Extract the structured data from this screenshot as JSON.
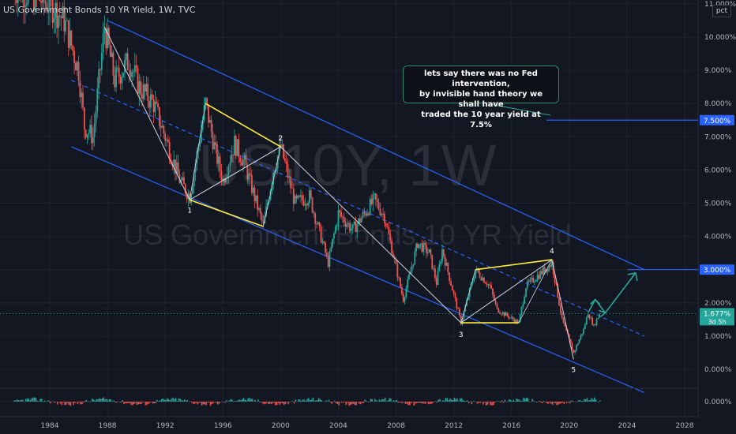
{
  "header": {
    "title": "US Government Bonds 10 YR Yield, 1W, TVC"
  },
  "watermark": {
    "symbol": "US10Y, 1W",
    "description": "US Government Bonds 10 YR Yield"
  },
  "scale_button": "pct",
  "annotation_note": "lets say there was no Fed intervention,\nby invisible hand theory we shall have\ntraded the 10 year yield at 7.5%",
  "price_tags": [
    {
      "label": "7.500%",
      "value": 7.5,
      "color": "#2962ff"
    },
    {
      "label": "3.000%",
      "value": 3.0,
      "color": "#2962ff"
    },
    {
      "label": "1.677%",
      "sub": "3d 5h",
      "value": 1.677,
      "color": "#26a69a"
    }
  ],
  "wave_labels": [
    "1",
    "2",
    "3",
    "4",
    "5"
  ],
  "colors": {
    "background": "#131722",
    "channel": "#2962ff",
    "wedge": "#ffeb3b",
    "projection": "#26a69a",
    "up": "#26a69a",
    "down": "#ef5350",
    "white_lines": "#d1d4dc"
  },
  "chart_data": {
    "type": "candlestick",
    "title": "US Government Bonds 10 YR Yield, 1W, TVC",
    "y_axis": {
      "ticks": [
        "11.000%",
        "10.000%",
        "9.000%",
        "8.000%",
        "7.000%",
        "6.000%",
        "5.000%",
        "4.000%",
        "3.000%",
        "2.000%",
        "1.000%",
        "0.000%"
      ],
      "values": [
        11,
        10,
        9,
        8,
        7,
        6,
        5,
        4,
        3,
        2,
        1,
        0
      ],
      "ylim": [
        -0.7,
        11.2
      ]
    },
    "x_axis": {
      "ticks": [
        "1984",
        "1988",
        "1992",
        "1996",
        "2000",
        "2004",
        "2008",
        "2012",
        "2016",
        "2020",
        "2024",
        "2028"
      ],
      "values": [
        1984,
        1988,
        1992,
        1996,
        2000,
        2004,
        2008,
        2012,
        2016,
        2020,
        2024,
        2028
      ]
    },
    "price_path": [
      [
        1981.5,
        11.5
      ],
      [
        1983,
        11.2
      ],
      [
        1984.0,
        11.0
      ],
      [
        1985.0,
        10.5
      ],
      [
        1986.0,
        9.0
      ],
      [
        1986.4,
        7.3
      ],
      [
        1987.0,
        7.0
      ],
      [
        1987.8,
        10.3
      ],
      [
        1988.5,
        8.7
      ],
      [
        1989.5,
        9.3
      ],
      [
        1990.2,
        8.5
      ],
      [
        1991.2,
        8.0
      ],
      [
        1992.0,
        7.0
      ],
      [
        1993.0,
        5.7
      ],
      [
        1993.7,
        5.2
      ],
      [
        1994.8,
        8.0
      ],
      [
        1995.5,
        6.5
      ],
      [
        1996.0,
        5.7
      ],
      [
        1996.8,
        6.8
      ],
      [
        1997.5,
        6.2
      ],
      [
        1998.8,
        4.3
      ],
      [
        1999.5,
        6.0
      ],
      [
        2000.0,
        6.7
      ],
      [
        2001.0,
        5.0
      ],
      [
        2002.0,
        5.2
      ],
      [
        2003.3,
        3.2
      ],
      [
        2004.0,
        4.7
      ],
      [
        2005.0,
        4.2
      ],
      [
        2006.5,
        5.1
      ],
      [
        2007.2,
        4.6
      ],
      [
        2008.5,
        2.1
      ],
      [
        2009.5,
        3.8
      ],
      [
        2010.3,
        3.5
      ],
      [
        2010.8,
        2.6
      ],
      [
        2011.2,
        3.6
      ],
      [
        2012.5,
        1.4
      ],
      [
        2013.5,
        3.0
      ],
      [
        2014.5,
        2.5
      ],
      [
        2015.0,
        1.8
      ],
      [
        2016.5,
        1.4
      ],
      [
        2017.0,
        2.5
      ],
      [
        2018.8,
        3.2
      ],
      [
        2019.5,
        1.5
      ],
      [
        2020.3,
        0.5
      ],
      [
        2021.0,
        1.2
      ],
      [
        2021.3,
        1.7
      ],
      [
        2021.7,
        1.3
      ],
      [
        2022.1,
        1.677
      ]
    ],
    "channel": {
      "upper": [
        [
          1988.0,
          10.5
        ],
        [
          2025.2,
          3.0
        ]
      ],
      "mid": [
        [
          1985.5,
          8.7
        ],
        [
          2025.2,
          1.0
        ]
      ],
      "lower": [
        [
          1985.5,
          6.7
        ],
        [
          2025.2,
          -0.7
        ]
      ]
    },
    "waves": [
      {
        "label": "1",
        "x": 1993.7,
        "y": 5.1
      },
      {
        "label": "2",
        "x": 2000.0,
        "y": 6.7
      },
      {
        "label": "3",
        "x": 2012.5,
        "y": 1.4
      },
      {
        "label": "4",
        "x": 2018.8,
        "y": 3.3
      },
      {
        "label": "5",
        "x": 2020.3,
        "y": 0.3
      }
    ],
    "horizontal_levels": [
      7.5,
      3.0,
      1.677
    ]
  }
}
